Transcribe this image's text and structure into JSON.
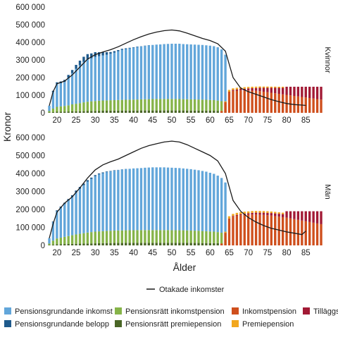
{
  "chart_data": {
    "type": "bar",
    "stacked": true,
    "ylabel": "Kronor",
    "xlabel": "Ålder",
    "x_ticks": [
      20,
      25,
      30,
      35,
      40,
      45,
      50,
      55,
      60,
      65,
      70,
      75,
      80,
      85
    ],
    "y_ticks": [
      0,
      100000,
      200000,
      300000,
      400000,
      500000,
      600000
    ],
    "y_tick_labels": [
      "0",
      "100 000",
      "200 000",
      "300 000",
      "400 000",
      "500 000",
      "600 000"
    ],
    "xlim": [
      18,
      89
    ],
    "ylim": [
      0,
      600000
    ],
    "colors": {
      "pgi": "#62a6da",
      "pgb": "#1f5a8c",
      "ink_ratt": "#86b449",
      "prem_ratt": "#4a6626",
      "ink_pension": "#cf4f1d",
      "prem_pension": "#f2a71e",
      "till_pension": "#a21a35",
      "line": "#1a1a1a"
    },
    "legend": [
      {
        "key": "pgi",
        "label": "Pensionsgrundande inkomst"
      },
      {
        "key": "pgb",
        "label": "Pensionsgrundande belopp"
      },
      {
        "key": "ink_ratt",
        "label": "Pensionsrätt inkomstpension"
      },
      {
        "key": "prem_ratt",
        "label": "Pensionsrätt premiepension"
      },
      {
        "key": "ink_pension",
        "label": "Inkomstpension"
      },
      {
        "key": "prem_pension",
        "label": "Premiepension"
      },
      {
        "key": "till_pension",
        "label": "Tilläggspension"
      }
    ],
    "line_legend": "Otakade inkomster",
    "panels": [
      {
        "name": "Kvinnor",
        "pgi_ages": [
          18,
          64
        ],
        "pgi_values": [
          40000,
          120000,
          165000,
          168000,
          175000,
          200000,
          225000,
          250000,
          270000,
          290000,
          305000,
          310000,
          318000,
          322000,
          326000,
          330000,
          335000,
          342000,
          350000,
          358000,
          362000,
          366000,
          370000,
          374000,
          377000,
          380000,
          383000,
          385000,
          387000,
          388000,
          390000,
          391000,
          392000,
          392000,
          392000,
          390000,
          389000,
          388000,
          387000,
          386000,
          385000,
          383000,
          381000,
          378000,
          372000,
          360000,
          330000
        ],
        "pgb_values": [
          0,
          5000,
          8000,
          10000,
          12000,
          15000,
          18000,
          22000,
          26000,
          28000,
          28000,
          27000,
          26000,
          22000,
          18000,
          14000,
          10000,
          8000,
          6000,
          5000,
          4000,
          3000,
          2000,
          2000,
          1000,
          1000,
          1000,
          0,
          0,
          0,
          0,
          0,
          0,
          0,
          0,
          0,
          0,
          0,
          0,
          0,
          0,
          0,
          0,
          0,
          0,
          0,
          0
        ],
        "ratt_ink_values": [
          8000,
          20000,
          28000,
          30000,
          32000,
          35000,
          40000,
          43000,
          46000,
          50000,
          53000,
          55000,
          56000,
          57000,
          58000,
          58500,
          59000,
          59500,
          60000,
          60500,
          61000,
          61500,
          62000,
          62500,
          63000,
          63500,
          64000,
          64500,
          65000,
          65000,
          65000,
          65000,
          65000,
          65000,
          64500,
          64000,
          64000,
          63500,
          63000,
          62500,
          62000,
          61500,
          61000,
          60000,
          58000,
          55000,
          50000
        ],
        "ratt_prem_values": [
          2000,
          4000,
          6000,
          6500,
          7000,
          7500,
          8000,
          8500,
          9000,
          9500,
          10000,
          10500,
          11000,
          11500,
          12000,
          12000,
          12500,
          12500,
          12500,
          13000,
          13000,
          13000,
          13000,
          13000,
          13500,
          13500,
          13500,
          13500,
          13500,
          13500,
          13500,
          13500,
          13500,
          13500,
          13500,
          13500,
          13000,
          13000,
          13000,
          13000,
          12500,
          12500,
          12000,
          12000,
          11500,
          11000,
          10000
        ],
        "pension_ages": [
          63,
          89
        ],
        "ink_pension_values": [
          10000,
          60000,
          120000,
          125000,
          126000,
          127000,
          127000,
          127000,
          126000,
          125000,
          123000,
          120000,
          117000,
          114000,
          111000,
          108000,
          105000,
          102000,
          99000,
          96000,
          93000,
          90000,
          87000,
          84000,
          81000,
          78000,
          75000
        ],
        "prem_pension_values": [
          1000,
          5000,
          10000,
          9000,
          9000,
          8500,
          8500,
          8000,
          8000,
          7500,
          7500,
          7000,
          7000,
          6500,
          6500,
          6000,
          6000,
          0,
          0,
          0,
          0,
          0,
          0,
          0,
          0,
          0,
          0
        ],
        "till_pension_values": [
          0,
          0,
          0,
          5000,
          7000,
          9000,
          10000,
          12000,
          14000,
          16000,
          19000,
          22000,
          25000,
          28000,
          31000,
          34000,
          37000,
          46000,
          49000,
          52000,
          55000,
          58000,
          61000,
          64000,
          67000,
          70000,
          73000
        ],
        "line_x": [
          18,
          19,
          20,
          22,
          24,
          26,
          28,
          30,
          32,
          34,
          36,
          38,
          40,
          42,
          44,
          46,
          48,
          50,
          52,
          54,
          56,
          58,
          60,
          62,
          64,
          66,
          68,
          70,
          72,
          74,
          76,
          78,
          80,
          82,
          84,
          85
        ],
        "line_y": [
          40000,
          120000,
          165000,
          180000,
          215000,
          260000,
          305000,
          330000,
          345000,
          358000,
          375000,
          395000,
          415000,
          432000,
          447000,
          458000,
          466000,
          470000,
          465000,
          452000,
          437000,
          422000,
          410000,
          392000,
          350000,
          200000,
          140000,
          120000,
          105000,
          90000,
          75000,
          63000,
          53000,
          47000,
          44000,
          42000
        ]
      },
      {
        "name": "Män",
        "pgi_ages": [
          18,
          64
        ],
        "pgi_values": [
          40000,
          130000,
          190000,
          210000,
          230000,
          250000,
          270000,
          295000,
          315000,
          335000,
          355000,
          370000,
          385000,
          395000,
          402000,
          408000,
          412000,
          416000,
          419000,
          422000,
          424000,
          426000,
          428000,
          429000,
          430000,
          432000,
          433000,
          434000,
          434000,
          434000,
          434000,
          433000,
          432000,
          431000,
          430000,
          428000,
          426000,
          424000,
          421000,
          418000,
          414000,
          410000,
          404000,
          398000,
          388000,
          375000,
          350000
        ],
        "pgb_values": [
          0,
          3000,
          5000,
          6000,
          7000,
          8000,
          9000,
          10000,
          10000,
          9000,
          8000,
          7000,
          6000,
          5000,
          4000,
          3000,
          2000,
          2000,
          1000,
          1000,
          1000,
          0,
          0,
          0,
          0,
          0,
          0,
          0,
          0,
          0,
          0,
          0,
          0,
          0,
          0,
          0,
          0,
          0,
          0,
          0,
          0,
          0,
          0,
          0,
          0,
          0,
          0
        ],
        "ratt_ink_values": [
          8000,
          22000,
          32000,
          36000,
          40000,
          44000,
          48000,
          52000,
          55000,
          58000,
          61000,
          63000,
          65000,
          66000,
          67000,
          68000,
          68500,
          69000,
          69500,
          70000,
          70000,
          70500,
          70500,
          71000,
          71000,
          71000,
          71000,
          71000,
          71000,
          71000,
          71000,
          71000,
          70500,
          70500,
          70000,
          70000,
          69500,
          69000,
          68500,
          68000,
          67000,
          66000,
          65000,
          64000,
          62000,
          59000,
          55000
        ],
        "ratt_prem_values": [
          2000,
          4500,
          6500,
          7000,
          7500,
          8000,
          8500,
          9000,
          9500,
          10000,
          10500,
          11000,
          11500,
          12000,
          12500,
          13000,
          13000,
          13500,
          13500,
          13500,
          14000,
          14000,
          14000,
          14000,
          14000,
          14000,
          14000,
          14000,
          14000,
          14000,
          14000,
          14000,
          14000,
          14000,
          14000,
          14000,
          14000,
          13500,
          13500,
          13500,
          13000,
          13000,
          12500,
          12500,
          12000,
          11500,
          10500
        ],
        "pension_ages": [
          63,
          89
        ],
        "ink_pension_values": [
          10000,
          70000,
          150000,
          160000,
          165000,
          168000,
          170000,
          171000,
          172000,
          172000,
          171000,
          170000,
          168000,
          166000,
          163000,
          160000,
          157000,
          154000,
          150000,
          146000,
          142000,
          138000,
          134000,
          130000,
          126000,
          122000,
          118000
        ],
        "prem_pension_values": [
          1000,
          6000,
          12000,
          11000,
          11000,
          10500,
          10500,
          10000,
          10000,
          9500,
          9500,
          9000,
          9000,
          8500,
          8500,
          8000,
          8000,
          0,
          0,
          0,
          0,
          0,
          0,
          0,
          0,
          0,
          0
        ],
        "till_pension_values": [
          0,
          0,
          0,
          4000,
          5000,
          6000,
          7000,
          8000,
          9000,
          10000,
          11000,
          12000,
          13000,
          14000,
          15000,
          16000,
          17000,
          36000,
          40000,
          44000,
          48000,
          52000,
          56000,
          60000,
          64000,
          68000,
          72000
        ],
        "line_x": [
          18,
          19,
          20,
          22,
          24,
          26,
          28,
          30,
          32,
          34,
          36,
          38,
          40,
          42,
          44,
          46,
          48,
          50,
          52,
          54,
          56,
          58,
          60,
          62,
          64,
          66,
          68,
          70,
          72,
          74,
          76,
          78,
          80,
          82,
          84,
          85
        ],
        "line_y": [
          40000,
          120000,
          185000,
          235000,
          270000,
          320000,
          375000,
          420000,
          448000,
          465000,
          480000,
          500000,
          520000,
          540000,
          555000,
          565000,
          575000,
          580000,
          575000,
          560000,
          540000,
          520000,
          500000,
          470000,
          400000,
          250000,
          190000,
          155000,
          130000,
          110000,
          95000,
          85000,
          75000,
          68000,
          60000,
          80000
        ]
      }
    ]
  }
}
